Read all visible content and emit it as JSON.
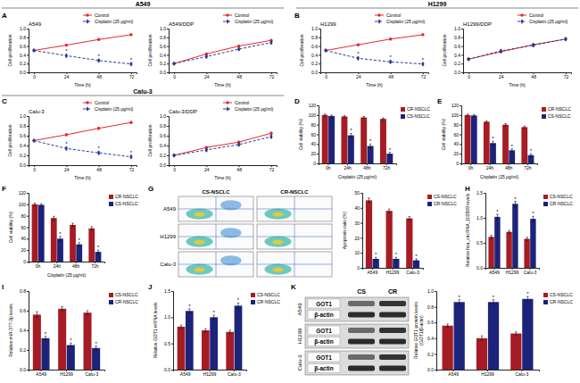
{
  "figure": {
    "panel_labels": [
      "A",
      "B",
      "C",
      "D",
      "E",
      "F",
      "G",
      "H",
      "I",
      "J",
      "K"
    ],
    "headers": [
      "A549",
      "H1299",
      "Calu-3"
    ],
    "flow": {
      "columns": [
        "CS-NSCLC",
        "CR-NSCLC"
      ],
      "rows": [
        "A549",
        "H1299",
        "Calu-3"
      ]
    },
    "blot": {
      "columns": [
        "CS",
        "CR"
      ],
      "rows": [
        {
          "cell": "A549",
          "bands": [
            "GOT1",
            "β-actin"
          ]
        },
        {
          "cell": "H1299",
          "bands": [
            "GOT1",
            "β-actin"
          ]
        },
        {
          "cell": "Calu-3",
          "bands": [
            "GOT1",
            "β-actin"
          ]
        }
      ]
    }
  },
  "chart_data": [
    {
      "type": "line",
      "title": "A549",
      "x": [
        0,
        24,
        48,
        72
      ],
      "xlim": [
        -4,
        76
      ],
      "xticks": [
        0,
        24,
        48,
        72
      ],
      "x_label": "Time (h)",
      "y_label": "Cell proliferation",
      "ylim": [
        0,
        1
      ],
      "yticks": [
        {
          "value": 0,
          "label": "0.0"
        },
        0.2,
        0.4,
        0.6,
        0.8,
        {
          "value": 1,
          "label": "1.0"
        }
      ],
      "legend": "top-right",
      "series": [
        {
          "name": "Control",
          "color": "#e8262b",
          "marker": "circle",
          "line_style": "solid",
          "values": [
            0.5,
            0.62,
            0.75,
            0.86
          ],
          "errors": [
            0.015,
            0.02,
            0.02,
            0.02
          ]
        },
        {
          "name": "Cisplatin (25 μg/ml)",
          "color": "#23399a",
          "marker": "diamond",
          "line_style": "dashed",
          "values": [
            0.5,
            0.38,
            0.27,
            0.19
          ],
          "errors": [
            0.015,
            0.03,
            0.03,
            0.03
          ]
        }
      ],
      "annotations": [
        {
          "text": "*",
          "series": 1,
          "index": 1
        },
        {
          "text": "*",
          "series": 1,
          "index": 2
        },
        {
          "text": "*",
          "series": 1,
          "index": 3
        }
      ]
    },
    {
      "type": "line",
      "title": "A549/DDP",
      "x": [
        0,
        24,
        48,
        72
      ],
      "xlim": [
        -4,
        76
      ],
      "xticks": [
        0,
        24,
        48,
        72
      ],
      "x_label": "Time (h)",
      "y_label": "Cell proliferation",
      "ylim": [
        0,
        1
      ],
      "yticks": [
        {
          "value": 0,
          "label": "0.0"
        },
        0.2,
        0.4,
        0.6,
        0.8,
        {
          "value": 1,
          "label": "1.0"
        }
      ],
      "legend": "top-right",
      "series": [
        {
          "name": "Control",
          "color": "#e8262b",
          "marker": "circle",
          "line_style": "solid",
          "values": [
            0.2,
            0.42,
            0.6,
            0.73
          ],
          "errors": [
            0.015,
            0.02,
            0.02,
            0.02
          ]
        },
        {
          "name": "Cisplatin (25 μg/ml)",
          "color": "#23399a",
          "marker": "diamond",
          "line_style": "dashed",
          "values": [
            0.2,
            0.36,
            0.53,
            0.68
          ],
          "errors": [
            0.015,
            0.03,
            0.03,
            0.03
          ]
        }
      ]
    },
    {
      "type": "line",
      "title": "H1299",
      "x": [
        0,
        24,
        48,
        72
      ],
      "xlim": [
        -4,
        76
      ],
      "xticks": [
        0,
        24,
        48,
        72
      ],
      "x_label": "Time (h)",
      "y_label": "Cell proliferation",
      "ylim": [
        0,
        1
      ],
      "yticks": [
        {
          "value": 0,
          "label": "0.0"
        },
        0.2,
        0.4,
        0.6,
        0.8,
        {
          "value": 1,
          "label": "1.0"
        }
      ],
      "legend": "top-right",
      "series": [
        {
          "name": "Control",
          "color": "#e8262b",
          "marker": "circle",
          "line_style": "solid",
          "values": [
            0.5,
            0.63,
            0.76,
            0.86
          ],
          "errors": [
            0.015,
            0.02,
            0.02,
            0.02
          ]
        },
        {
          "name": "Cisplatin (25 μg/ml)",
          "color": "#23399a",
          "marker": "diamond",
          "line_style": "dashed",
          "values": [
            0.5,
            0.32,
            0.24,
            0.19
          ],
          "errors": [
            0.015,
            0.03,
            0.03,
            0.03
          ]
        }
      ],
      "annotations": [
        {
          "text": "*",
          "series": 1,
          "index": 1
        },
        {
          "text": "*",
          "series": 1,
          "index": 2
        },
        {
          "text": "*",
          "series": 1,
          "index": 3
        }
      ]
    },
    {
      "type": "line",
      "title": "H1299/DDP",
      "x": [
        0,
        24,
        48,
        72
      ],
      "xlim": [
        -4,
        76
      ],
      "xticks": [
        0,
        24,
        48,
        72
      ],
      "x_label": "Time (h)",
      "y_label": "Cell proliferation",
      "ylim": [
        0,
        1
      ],
      "yticks": [
        {
          "value": 0,
          "label": "0.0"
        },
        0.2,
        0.4,
        0.6,
        0.8,
        {
          "value": 1,
          "label": "1.0"
        }
      ],
      "legend": "top-right",
      "series": [
        {
          "name": "Control",
          "color": "#e8262b",
          "marker": "circle",
          "line_style": "solid",
          "values": [
            0.3,
            0.47,
            0.63,
            0.76
          ],
          "errors": [
            0.015,
            0.02,
            0.02,
            0.02
          ]
        },
        {
          "name": "Cisplatin (25 μg/ml)",
          "color": "#23399a",
          "marker": "diamond",
          "line_style": "dashed",
          "values": [
            0.3,
            0.49,
            0.62,
            0.76
          ],
          "errors": [
            0.015,
            0.03,
            0.03,
            0.03
          ]
        }
      ]
    },
    {
      "type": "line",
      "title": "Calu-3",
      "x": [
        0,
        24,
        48,
        72
      ],
      "xlim": [
        -4,
        76
      ],
      "xticks": [
        0,
        24,
        48,
        72
      ],
      "x_label": "Time (h)",
      "y_label": "Cell proliferation",
      "ylim": [
        0,
        1
      ],
      "yticks": [
        {
          "value": 0,
          "label": "0.0"
        },
        0.2,
        0.4,
        0.6,
        0.8,
        {
          "value": 1,
          "label": "1.0"
        }
      ],
      "legend": "top-right",
      "series": [
        {
          "name": "Control",
          "color": "#e8262b",
          "marker": "circle",
          "line_style": "solid",
          "values": [
            0.5,
            0.62,
            0.75,
            0.87
          ],
          "errors": [
            0.015,
            0.02,
            0.02,
            0.02
          ]
        },
        {
          "name": "Cisplatin (25 μg/ml)",
          "color": "#23399a",
          "marker": "diamond",
          "line_style": "dashed",
          "values": [
            0.5,
            0.34,
            0.25,
            0.17
          ],
          "errors": [
            0.015,
            0.03,
            0.03,
            0.03
          ]
        }
      ],
      "annotations": [
        {
          "text": "*",
          "series": 1,
          "index": 1
        },
        {
          "text": "*",
          "series": 1,
          "index": 2
        },
        {
          "text": "*",
          "series": 1,
          "index": 3
        }
      ]
    },
    {
      "type": "line",
      "title": "Calu-3/DDP",
      "x": [
        0,
        24,
        48,
        72
      ],
      "xlim": [
        -4,
        76
      ],
      "xticks": [
        0,
        24,
        48,
        72
      ],
      "x_label": "Time (h)",
      "y_label": "Cell proliferation",
      "ylim": [
        0,
        1
      ],
      "yticks": [
        {
          "value": 0,
          "label": "0.0"
        },
        0.2,
        0.4,
        0.6,
        0.8,
        {
          "value": 1,
          "label": "1.0"
        }
      ],
      "legend": "top-right",
      "series": [
        {
          "name": "Control",
          "color": "#e8262b",
          "marker": "circle",
          "line_style": "solid",
          "values": [
            0.2,
            0.36,
            0.47,
            0.65
          ],
          "errors": [
            0.015,
            0.02,
            0.02,
            0.02
          ]
        },
        {
          "name": "Cisplatin (25 μg/ml)",
          "color": "#23399a",
          "marker": "diamond",
          "line_style": "dashed",
          "values": [
            0.2,
            0.31,
            0.42,
            0.58
          ],
          "errors": [
            0.015,
            0.03,
            0.03,
            0.03
          ]
        }
      ]
    },
    {
      "type": "bar",
      "categories": [
        "0h",
        "24h",
        "48h",
        "72h"
      ],
      "x_label": "Cisplatin (25 μg/ml)",
      "y_label": "Cell viability (%)",
      "ylim": [
        0,
        120
      ],
      "yticks": [
        0,
        20,
        40,
        60,
        80,
        100,
        120
      ],
      "legend": "right",
      "series": [
        {
          "name": "CR-NSCLC",
          "color": "#a61c24",
          "values": [
            100,
            97,
            95,
            92
          ],
          "errors": [
            2,
            2,
            2,
            2
          ]
        },
        {
          "name": "CS-NSCLC",
          "color": "#1c237a",
          "values": [
            98,
            58,
            36,
            20
          ],
          "errors": [
            2,
            4,
            4,
            3
          ]
        }
      ],
      "annotations": [
        {
          "text": "*",
          "series": 1,
          "index": 1
        },
        {
          "text": "*",
          "series": 1,
          "index": 2
        },
        {
          "text": "*",
          "series": 1,
          "index": 3
        }
      ]
    },
    {
      "type": "bar",
      "categories": [
        "0h",
        "24h",
        "48h",
        "72h"
      ],
      "x_label": "Cisplatin (25 μg/ml)",
      "y_label": "Cell viability (%)",
      "ylim": [
        0,
        120
      ],
      "yticks": [
        0,
        20,
        40,
        60,
        80,
        100,
        120
      ],
      "legend": "right",
      "series": [
        {
          "name": "CR-NSCLC",
          "color": "#a61c24",
          "values": [
            100,
            86,
            80,
            75
          ],
          "errors": [
            2,
            2,
            2,
            2
          ]
        },
        {
          "name": "CS-NSCLC",
          "color": "#1c237a",
          "values": [
            99,
            42,
            27,
            17
          ],
          "errors": [
            2,
            4,
            3,
            3
          ]
        }
      ],
      "annotations": [
        {
          "text": "*",
          "series": 1,
          "index": 1
        },
        {
          "text": "*",
          "series": 1,
          "index": 2
        },
        {
          "text": "*",
          "series": 1,
          "index": 3
        }
      ]
    },
    {
      "type": "bar",
      "categories": [
        "0h",
        "24h",
        "48h",
        "72h"
      ],
      "x_label": "Cisplatin (25 μg/ml)",
      "y_label": "Cell viability (%)",
      "ylim": [
        0,
        120
      ],
      "yticks": [
        0,
        20,
        40,
        60,
        80,
        100,
        120
      ],
      "legend": "right",
      "series": [
        {
          "name": "CR-NSCLC",
          "color": "#a61c24",
          "values": [
            100,
            76,
            64,
            58
          ],
          "errors": [
            2,
            3,
            3,
            3
          ]
        },
        {
          "name": "CS-NSCLC",
          "color": "#1c237a",
          "values": [
            99,
            40,
            30,
            17
          ],
          "errors": [
            2,
            4,
            3,
            3
          ]
        }
      ],
      "annotations": [
        {
          "text": "*",
          "series": 1,
          "index": 1
        },
        {
          "text": "*",
          "series": 1,
          "index": 2
        },
        {
          "text": "*",
          "series": 1,
          "index": 3
        }
      ]
    },
    {
      "type": "bar",
      "categories": [
        "A549",
        "H1299",
        "Calu-3"
      ],
      "y_label": "Apoptosis ratio (%)",
      "ylim": [
        0,
        50
      ],
      "yticks": [
        0,
        10,
        20,
        30,
        40,
        50
      ],
      "legend": "right",
      "series": [
        {
          "name": "CS-NSCLC",
          "color": "#a61c24",
          "values": [
            45,
            38,
            33
          ],
          "errors": [
            1.5,
            1.2,
            1.2
          ]
        },
        {
          "name": "CR-NSCLC",
          "color": "#1c237a",
          "values": [
            6,
            6,
            5
          ],
          "errors": [
            1,
            1,
            1
          ]
        }
      ],
      "annotations": [
        {
          "text": "*",
          "series": 1,
          "index": 0
        },
        {
          "text": "*",
          "series": 1,
          "index": 1
        },
        {
          "text": "*",
          "series": 1,
          "index": 2
        }
      ]
    },
    {
      "type": "bar",
      "categories": [
        "A549",
        "H1299",
        "Calu-3"
      ],
      "y_label": "Relative hsa_circRNA_103809 levels",
      "ylim": [
        0,
        1.5
      ],
      "yticks": [
        {
          "value": 0,
          "label": "0.0"
        },
        0.5,
        {
          "value": 1,
          "label": "1.0"
        },
        1.5
      ],
      "legend": "right",
      "series": [
        {
          "name": "CS-NSCLC",
          "color": "#a61c24",
          "values": [
            0.62,
            0.72,
            0.58
          ],
          "errors": [
            0.03,
            0.03,
            0.03
          ]
        },
        {
          "name": "CR-NSCLC",
          "color": "#1c237a",
          "values": [
            1.02,
            1.28,
            0.98
          ],
          "errors": [
            0.05,
            0.05,
            0.05
          ]
        }
      ],
      "annotations": [
        {
          "text": "*",
          "series": 1,
          "index": 0
        },
        {
          "text": "*",
          "series": 1,
          "index": 1
        },
        {
          "text": "*",
          "series": 1,
          "index": 2
        }
      ]
    },
    {
      "type": "bar",
      "categories": [
        "A549",
        "H1299",
        "Calu-3"
      ],
      "y_label": "Relative miR-377-3p levels",
      "ylim": [
        0,
        0.8
      ],
      "yticks": [
        {
          "value": 0,
          "label": "0.0"
        },
        0.2,
        0.4,
        0.6,
        0.8
      ],
      "legend": "right",
      "series": [
        {
          "name": "CS-NSCLC",
          "color": "#a61c24",
          "values": [
            0.56,
            0.62,
            0.58
          ],
          "errors": [
            0.03,
            0.02,
            0.02
          ]
        },
        {
          "name": "CR-NSCLC",
          "color": "#1c237a",
          "values": [
            0.32,
            0.25,
            0.22
          ],
          "errors": [
            0.02,
            0.02,
            0.02
          ]
        }
      ],
      "annotations": [
        {
          "text": "*",
          "series": 1,
          "index": 0
        },
        {
          "text": "*",
          "series": 1,
          "index": 1
        },
        {
          "text": "*",
          "series": 1,
          "index": 2
        }
      ]
    },
    {
      "type": "bar",
      "categories": [
        "A549",
        "H1299",
        "Calu-3"
      ],
      "y_label": "Relative GOT1 mRNA levels",
      "ylim": [
        0,
        1.5
      ],
      "yticks": [
        {
          "value": 0,
          "label": "0.0"
        },
        0.5,
        {
          "value": 1,
          "label": "1.0"
        },
        1.5
      ],
      "legend": "right",
      "series": [
        {
          "name": "CS-NSCLC",
          "color": "#a61c24",
          "values": [
            0.82,
            0.75,
            0.72
          ],
          "errors": [
            0.03,
            0.03,
            0.03
          ]
        },
        {
          "name": "CR-NSCLC",
          "color": "#1c237a",
          "values": [
            1.12,
            1.0,
            1.22
          ],
          "errors": [
            0.04,
            0.04,
            0.05
          ]
        }
      ],
      "annotations": [
        {
          "text": "*",
          "series": 1,
          "index": 0
        },
        {
          "text": "*",
          "series": 1,
          "index": 1
        },
        {
          "text": "*",
          "series": 1,
          "index": 2
        }
      ]
    },
    {
      "type": "bar",
      "categories": [
        "A549",
        "H1299",
        "Calu-3"
      ],
      "y_label": [
        "Relative GOT1 protein levels",
        "(GOT1/β-actin)"
      ],
      "ylim": [
        0,
        1
      ],
      "yticks": [
        {
          "value": 0,
          "label": "0.0"
        },
        0.2,
        0.4,
        0.6,
        0.8,
        {
          "value": 1,
          "label": "1.0"
        }
      ],
      "legend": "right",
      "series": [
        {
          "name": "CS-NSCLC",
          "color": "#a61c24",
          "values": [
            0.56,
            0.4,
            0.46
          ],
          "errors": [
            0.02,
            0.03,
            0.02
          ]
        },
        {
          "name": "CR-NSCLC",
          "color": "#1c237a",
          "values": [
            0.86,
            0.86,
            0.9
          ],
          "errors": [
            0.03,
            0.03,
            0.03
          ]
        }
      ],
      "annotations": [
        {
          "text": "*",
          "series": 1,
          "index": 0
        },
        {
          "text": "*",
          "series": 1,
          "index": 1
        },
        {
          "text": "*",
          "series": 1,
          "index": 2
        }
      ]
    }
  ]
}
